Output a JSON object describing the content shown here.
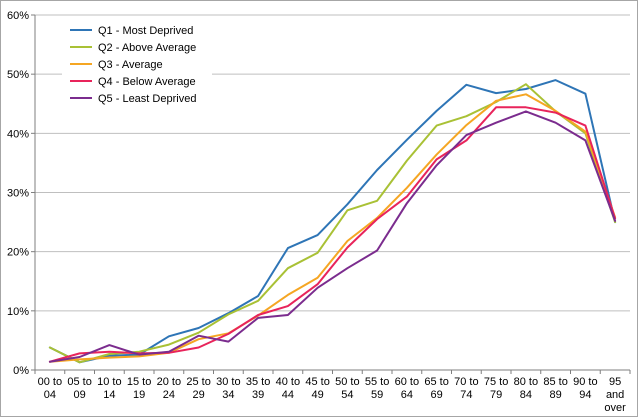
{
  "chart_data": {
    "type": "line",
    "title": "",
    "xlabel": "",
    "ylabel": "",
    "ylim": [
      0,
      60
    ],
    "y_ticks": [
      "0%",
      "10%",
      "20%",
      "30%",
      "40%",
      "50%",
      "60%"
    ],
    "grid": "horizontal",
    "legend_position": "top-left",
    "categories": [
      [
        "00 to",
        "04"
      ],
      [
        "05 to",
        "09"
      ],
      [
        "10 to",
        "14"
      ],
      [
        "15 to",
        "19"
      ],
      [
        "20 to",
        "24"
      ],
      [
        "25 to",
        "29"
      ],
      [
        "30 to",
        "34"
      ],
      [
        "35 to",
        "39"
      ],
      [
        "40 to",
        "44"
      ],
      [
        "45 to",
        "49"
      ],
      [
        "50 to",
        "54"
      ],
      [
        "55 to",
        "59"
      ],
      [
        "60 to",
        "64"
      ],
      [
        "65 to",
        "69"
      ],
      [
        "70 to",
        "74"
      ],
      [
        "75 to",
        "79"
      ],
      [
        "80 to",
        "84"
      ],
      [
        "85 to",
        "89"
      ],
      [
        "90 to",
        "94"
      ],
      [
        "95",
        "and",
        "over"
      ]
    ],
    "series": [
      {
        "name": "Q1 - Most Deprived",
        "color": "#2e75b6",
        "values": [
          3.8,
          1.3,
          2.4,
          2.6,
          5.7,
          7.1,
          9.6,
          12.5,
          20.6,
          22.8,
          28.0,
          33.8,
          38.9,
          43.8,
          48.2,
          46.8,
          47.5,
          49.0,
          46.7,
          25.0
        ]
      },
      {
        "name": "Q2 - Above Average",
        "color": "#a9c135",
        "values": [
          3.8,
          1.3,
          2.7,
          3.1,
          4.3,
          6.3,
          9.4,
          11.7,
          17.2,
          19.8,
          27.0,
          28.6,
          35.4,
          41.3,
          42.9,
          45.3,
          48.3,
          43.7,
          40.0,
          25.0
        ]
      },
      {
        "name": "Q3 - Average",
        "color": "#f5a623",
        "values": [
          1.4,
          1.8,
          2.1,
          2.3,
          2.9,
          5.2,
          6.2,
          9.2,
          12.7,
          15.6,
          21.8,
          25.7,
          30.8,
          36.4,
          41.4,
          45.5,
          46.6,
          43.8,
          40.3,
          25.8
        ]
      },
      {
        "name": "Q4 - Below Average",
        "color": "#e8245b",
        "values": [
          1.4,
          2.8,
          3.1,
          2.8,
          2.9,
          3.8,
          6.1,
          9.3,
          10.8,
          14.5,
          20.7,
          25.5,
          29.3,
          35.6,
          38.8,
          44.4,
          44.4,
          43.5,
          41.3,
          25.6
        ]
      },
      {
        "name": "Q5 - Least Deprived",
        "color": "#7b2c8e",
        "values": [
          1.4,
          2.2,
          4.2,
          2.6,
          3.1,
          5.8,
          4.8,
          8.8,
          9.3,
          13.9,
          17.2,
          20.2,
          28.2,
          34.6,
          39.7,
          41.8,
          43.7,
          41.8,
          38.8,
          25.2
        ]
      }
    ]
  }
}
